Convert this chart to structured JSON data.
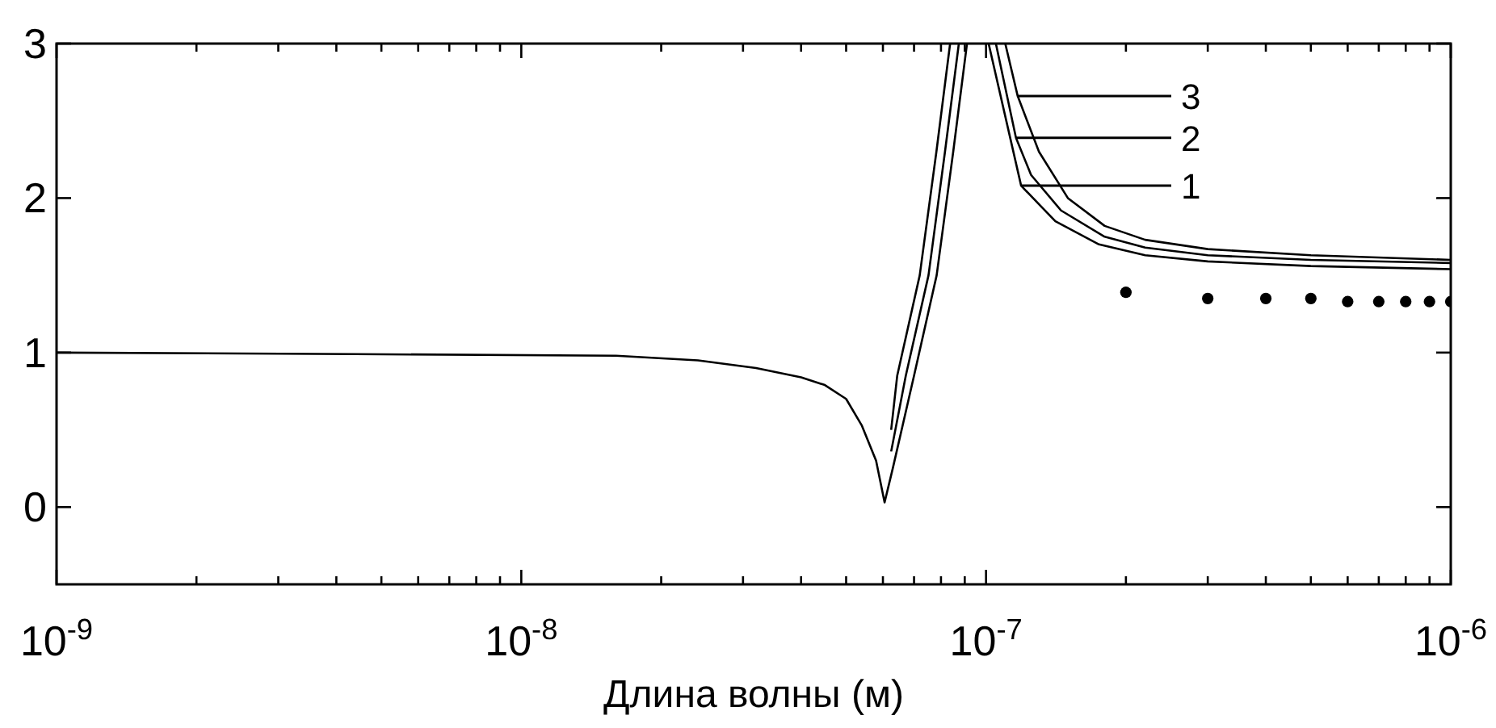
{
  "chart_data": {
    "type": "line",
    "xlabel": "Длина волны (м)",
    "log": "x",
    "grid": false,
    "legend": "top right",
    "line_style": "solid",
    "xlim": [
      1e-09,
      1e-06
    ],
    "ylim": [
      -0.5,
      3
    ],
    "xticks": [
      {
        "value": 1e-09,
        "label": "10$^{-9}$"
      },
      {
        "value": 2e-09,
        "label": null
      },
      {
        "value": 3e-09,
        "label": null
      },
      {
        "value": 4e-09,
        "label": null
      },
      {
        "value": 5e-09,
        "label": null
      },
      {
        "value": 6e-09,
        "label": null
      },
      {
        "value": 7e-09,
        "label": null
      },
      {
        "value": 8e-09,
        "label": null
      },
      {
        "value": 9e-09,
        "label": null
      },
      {
        "value": 1e-08,
        "label": "10$^{-8}$"
      },
      {
        "value": 2e-08,
        "label": null
      },
      {
        "value": 3e-08,
        "label": null
      },
      {
        "value": 4e-08,
        "label": null
      },
      {
        "value": 5e-08,
        "label": null
      },
      {
        "value": 6e-08,
        "label": null
      },
      {
        "value": 7e-08,
        "label": null
      },
      {
        "value": 8e-08,
        "label": null
      },
      {
        "value": 9e-08,
        "label": null
      },
      {
        "value": 1e-07,
        "label": "10$^{-7}$"
      },
      {
        "value": 2e-07,
        "label": null
      },
      {
        "value": 3e-07,
        "label": null
      },
      {
        "value": 4e-07,
        "label": null
      },
      {
        "value": 5e-07,
        "label": null
      },
      {
        "value": 6e-07,
        "label": null
      },
      {
        "value": 7e-07,
        "label": null
      },
      {
        "value": 8e-07,
        "label": null
      },
      {
        "value": 9e-07,
        "label": null
      },
      {
        "value": 1e-06,
        "label": "10$^{-6}$"
      }
    ],
    "yticks": [
      0,
      1,
      2,
      3
    ],
    "series": [
      {
        "name": "1",
        "color": "#000000",
        "x": [
          1e-09,
          4.4e-09,
          1.6e-08,
          2.4e-08,
          3.2e-08,
          4e-08,
          4.5e-08,
          5e-08,
          5.4e-08,
          5.8e-08,
          6.05e-08,
          6.3e-08,
          7e-08,
          7.83e-08,
          8.5e-08,
          9.1e-08,
          9.6e-08,
          1.013e-07,
          1.19e-07,
          1.41e-07,
          1.75e-07,
          2.2e-07,
          3e-07,
          5e-07,
          1e-06
        ],
        "values": [
          1,
          0.99,
          0.98,
          0.95,
          0.9,
          0.84,
          0.79,
          0.7,
          0.53,
          0.3,
          0.03,
          0.25,
          0.85,
          1.5,
          2.3,
          3,
          null,
          3,
          2.08,
          1.85,
          1.7,
          1.63,
          1.59,
          1.56,
          1.54
        ]
      },
      {
        "name": "2",
        "color": "#000000",
        "x": [
          6.25e-08,
          6.72e-08,
          7.52e-08,
          8.16e-08,
          8.74e-08,
          9.6e-08,
          1.05e-07,
          1.16e-07,
          1.25e-07,
          1.45e-07,
          1.8e-07,
          2.2e-07,
          3e-07,
          5e-07,
          1e-06
        ],
        "values": [
          0.36,
          0.85,
          1.5,
          2.3,
          3,
          null,
          3,
          2.39,
          2.15,
          1.92,
          1.75,
          1.68,
          1.63,
          1.6,
          1.58
        ]
      },
      {
        "name": "3",
        "color": "#000000",
        "x": [
          6.25e-08,
          6.44e-08,
          7.2e-08,
          7.82e-08,
          8.37e-08,
          9.6e-08,
          1.1e-07,
          1.17e-07,
          1.3e-07,
          1.5e-07,
          1.8e-07,
          2.2e-07,
          3e-07,
          5e-07,
          1e-06
        ],
        "values": [
          0.5,
          0.85,
          1.5,
          2.3,
          3,
          null,
          3,
          2.66,
          2.3,
          2.0,
          1.82,
          1.73,
          1.67,
          1.63,
          1.6
        ]
      },
      {
        "type": "scatter",
        "marker": "circle",
        "color": "#000000",
        "x": [
          2e-07,
          3e-07,
          4e-07,
          5e-07,
          6e-07,
          7e-07,
          8e-07,
          9e-07,
          1e-06
        ],
        "values": [
          1.39,
          1.35,
          1.35,
          1.35,
          1.33,
          1.33,
          1.33,
          1.33,
          1.33
        ]
      }
    ]
  }
}
